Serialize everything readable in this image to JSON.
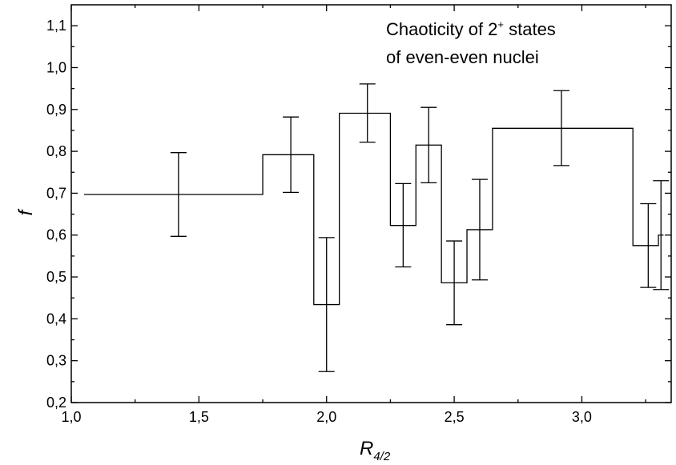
{
  "chart_data": {
    "type": "step-histogram",
    "annotation": {
      "line1_prefix": "Chaoticity of 2",
      "line1_sup": "+",
      "line1_suffix": " states",
      "line2": "of even-even nuclei"
    },
    "xlabel": "R",
    "xlabel_sub": "4/2",
    "ylabel": "f",
    "xlim": [
      1.0,
      3.35
    ],
    "ylim": [
      0.2,
      1.15
    ],
    "x_ticks": [
      1.0,
      1.5,
      2.0,
      2.5,
      3.0
    ],
    "x_tick_labels": [
      "1,0",
      "1,5",
      "2,0",
      "2,5",
      "3,0"
    ],
    "y_ticks": [
      0.2,
      0.3,
      0.4,
      0.5,
      0.6,
      0.7,
      0.8,
      0.9,
      1.0,
      1.1
    ],
    "y_tick_labels": [
      "0,2",
      "0,3",
      "0,4",
      "0,5",
      "0,6",
      "0,7",
      "0,8",
      "0,9",
      "1,0",
      "1,1"
    ],
    "bins": [
      {
        "x0": 1.05,
        "x1": 1.75,
        "value": 0.697,
        "center": 1.42,
        "err_low": 0.597,
        "err_high": 0.797
      },
      {
        "x0": 1.75,
        "x1": 1.95,
        "value": 0.792,
        "center": 1.86,
        "err_low": 0.702,
        "err_high": 0.882
      },
      {
        "x0": 1.95,
        "x1": 2.05,
        "value": 0.434,
        "center": 2.0,
        "err_low": 0.274,
        "err_high": 0.594
      },
      {
        "x0": 2.05,
        "x1": 2.25,
        "value": 0.891,
        "center": 2.16,
        "err_low": 0.822,
        "err_high": 0.961
      },
      {
        "x0": 2.25,
        "x1": 2.35,
        "value": 0.623,
        "center": 2.3,
        "err_low": 0.524,
        "err_high": 0.723
      },
      {
        "x0": 2.35,
        "x1": 2.45,
        "value": 0.815,
        "center": 2.4,
        "err_low": 0.725,
        "err_high": 0.905
      },
      {
        "x0": 2.45,
        "x1": 2.55,
        "value": 0.486,
        "center": 2.5,
        "err_low": 0.386,
        "err_high": 0.586
      },
      {
        "x0": 2.55,
        "x1": 2.65,
        "value": 0.613,
        "center": 2.6,
        "err_low": 0.493,
        "err_high": 0.733
      },
      {
        "x0": 2.65,
        "x1": 3.2,
        "value": 0.855,
        "center": 2.92,
        "err_low": 0.766,
        "err_high": 0.945
      },
      {
        "x0": 3.2,
        "x1": 3.3,
        "value": 0.575,
        "center": 3.26,
        "err_low": 0.475,
        "err_high": 0.675
      },
      {
        "x0": 3.3,
        "x1": 3.32,
        "value": 0.6,
        "center": 3.31,
        "err_low": 0.47,
        "err_high": 0.73
      }
    ]
  }
}
